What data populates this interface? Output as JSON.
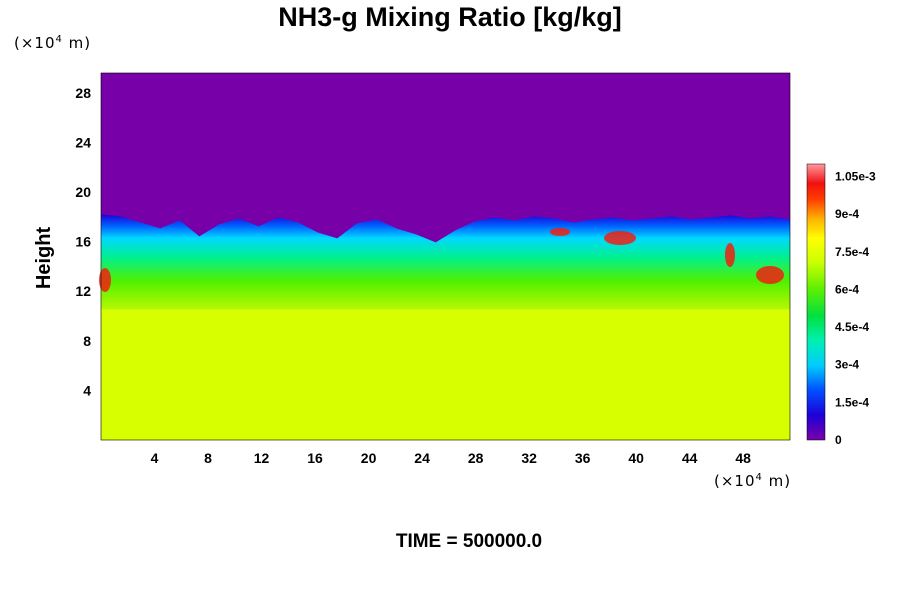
{
  "title": "NH3-g Mixing Ratio [kg/kg]",
  "footer": "TIME = 500000.0",
  "y_unit": {
    "prefix": "(×10",
    "exp": "4",
    "suffix": " m)"
  },
  "x_unit": {
    "prefix": "(×10",
    "exp": "4",
    "suffix": " m)"
  },
  "chart_data": {
    "type": "heatmap",
    "title": "NH3-g Mixing Ratio [kg/kg]",
    "xlabel": "",
    "ylabel": "Height",
    "x_unit": "×10^4 m",
    "y_unit": "×10^4 m",
    "xlim": [
      0,
      51.5
    ],
    "ylim": [
      0,
      29.6
    ],
    "x_ticks": [
      4,
      8,
      12,
      16,
      20,
      24,
      28,
      32,
      36,
      40,
      44,
      48
    ],
    "y_ticks": [
      4,
      8,
      12,
      16,
      20,
      24,
      28
    ],
    "colorbar": {
      "range": [
        0,
        0.0011
      ],
      "tick_values": [
        0,
        0.00015,
        0.0003,
        0.00045,
        0.0006,
        0.00075,
        0.0009,
        0.00105
      ],
      "tick_labels": [
        "0",
        "1.5e-4",
        "3e-4",
        "4.5e-4",
        "6e-4",
        "7.5e-4",
        "9e-4",
        "1.05e-3"
      ],
      "colormap": "rainbow"
    },
    "regions": [
      {
        "name": "lower",
        "height_range": [
          0,
          10.5
        ],
        "value": 0.00078
      },
      {
        "name": "mixing-layer",
        "height_range": [
          10.5,
          18.2
        ],
        "value_range": [
          0.0001,
          0.00105
        ]
      },
      {
        "name": "upper",
        "height_range": [
          18.2,
          29.6
        ],
        "value": 0
      }
    ],
    "colors": {
      "upper": "#7800a8",
      "lower": "#d8ff00"
    },
    "annotation": "TIME = 500000.0"
  }
}
